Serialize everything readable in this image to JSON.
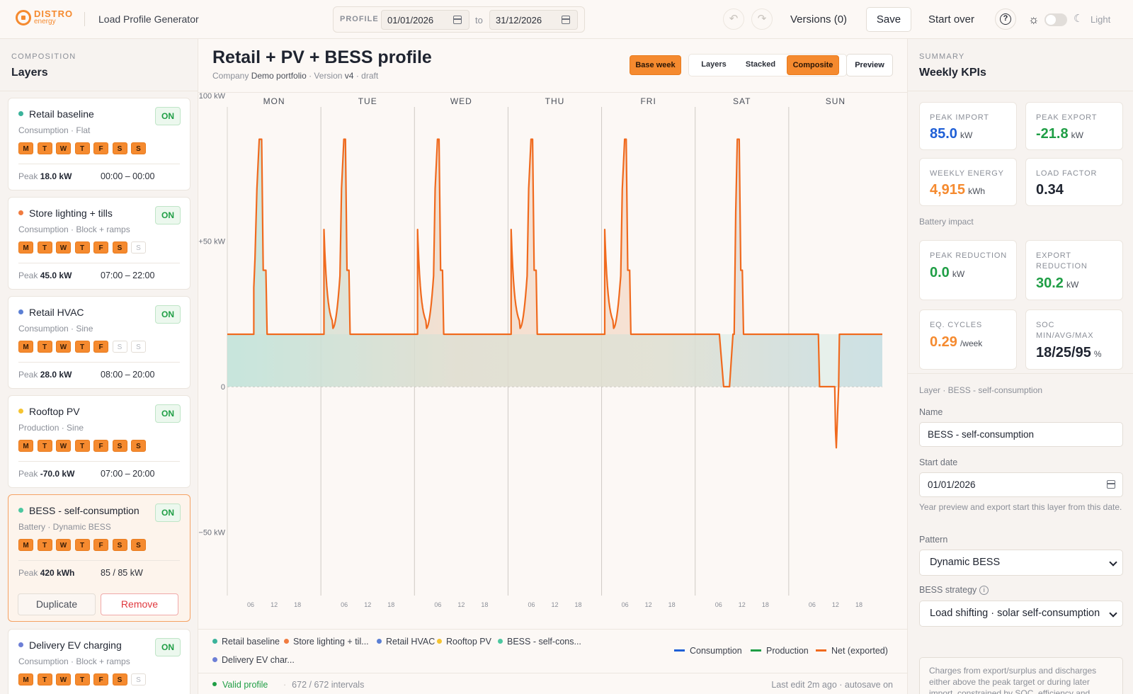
{
  "header": {
    "logo_top": "DISTRO",
    "logo_bottom": "energy",
    "app_title": "Load Profile Generator",
    "profile_label": "PROFILE",
    "date_from": "01/01/2026",
    "date_to_label": "to",
    "date_to": "31/12/2026",
    "versions": "Versions (0)",
    "save": "Save",
    "start_over": "Start over",
    "theme_label": "Light"
  },
  "left": {
    "caption": "COMPOSITION",
    "title": "Layers",
    "layers": [
      {
        "name": "Retail baseline",
        "sub": "Consumption · Flat",
        "color": "#3bb39b",
        "on": "ON",
        "days": [
          "M",
          "T",
          "W",
          "T",
          "F",
          "S",
          "S"
        ],
        "days_on": [
          true,
          true,
          true,
          true,
          true,
          true,
          true
        ],
        "peak_label": "Peak",
        "peak": "18.0 kW",
        "time": "00:00 – 00:00"
      },
      {
        "name": "Store lighting + tills",
        "sub": "Consumption · Block + ramps",
        "color": "#f07b3f",
        "on": "ON",
        "days": [
          "M",
          "T",
          "W",
          "T",
          "F",
          "S",
          "S"
        ],
        "days_on": [
          true,
          true,
          true,
          true,
          true,
          true,
          false
        ],
        "peak_label": "Peak",
        "peak": "45.0 kW",
        "time": "07:00 – 22:00"
      },
      {
        "name": "Retail HVAC",
        "sub": "Consumption · Sine",
        "color": "#5b7fd4",
        "on": "ON",
        "days": [
          "M",
          "T",
          "W",
          "T",
          "F",
          "S",
          "S"
        ],
        "days_on": [
          true,
          true,
          true,
          true,
          true,
          false,
          false
        ],
        "peak_label": "Peak",
        "peak": "28.0 kW",
        "time": "08:00 – 20:00"
      },
      {
        "name": "Rooftop PV",
        "sub": "Production · Sine",
        "color": "#f5c431",
        "on": "ON",
        "days": [
          "M",
          "T",
          "W",
          "T",
          "F",
          "S",
          "S"
        ],
        "days_on": [
          true,
          true,
          true,
          true,
          true,
          true,
          true
        ],
        "peak_label": "Peak",
        "peak": "-70.0 kW",
        "time": "07:00 – 20:00"
      },
      {
        "name": "BESS - self-consumption",
        "sub": "Battery · Dynamic BESS",
        "color": "#4cc7a0",
        "on": "ON",
        "days": [
          "M",
          "T",
          "W",
          "T",
          "F",
          "S",
          "S"
        ],
        "days_on": [
          true,
          true,
          true,
          true,
          true,
          true,
          true
        ],
        "peak_label": "Peak",
        "peak": "420 kWh",
        "time": "85 / 85 kW",
        "duplicate": "Duplicate",
        "remove": "Remove"
      },
      {
        "name": "Delivery EV charging",
        "sub": "Consumption · Block + ramps",
        "color": "#6d7fd6",
        "on": "ON",
        "days": [
          "M",
          "T",
          "W",
          "T",
          "F",
          "S",
          "S"
        ],
        "days_on": [
          true,
          true,
          true,
          true,
          true,
          true,
          false
        ],
        "peak_label": "Peak",
        "peak": "",
        "time": ""
      }
    ]
  },
  "center": {
    "title": "Retail + PV + BESS profile",
    "company_label": "Company",
    "company": "Demo portfolio",
    "version_label": "· Version",
    "version": "v4",
    "status": "· draft",
    "view_base_week": "Base week",
    "view_layers": "Layers",
    "view_stacked": "Stacked",
    "view_composite": "Composite",
    "preview": "Preview",
    "legend_layers": [
      "Retail baseline",
      "Store lighting + til...",
      "Retail HVAC",
      "Rooftop PV",
      "BESS - self-cons...",
      "Delivery EV char..."
    ],
    "legend_lines": [
      "Consumption",
      "Production",
      "Net (exported)"
    ],
    "valid": "Valid profile",
    "intervals": "672 / 672 intervals",
    "last_edit": "Last edit 2m ago · autosave on"
  },
  "chart_data": {
    "type": "line",
    "days": [
      "MON",
      "TUE",
      "WED",
      "THU",
      "FRI",
      "SAT",
      "SUN"
    ],
    "hour_ticks": [
      "06",
      "12",
      "18"
    ],
    "y_ticks": [
      "+100 kW",
      "+50 kW",
      "0",
      "−50 kW"
    ],
    "ylim": [
      -82,
      100
    ],
    "series_colors": {
      "net": "#f06a1e",
      "baseline": "#3bb39b",
      "lighting": "#f07b3f",
      "hvac": "#5b7fd4"
    },
    "net_week": {
      "mon": [
        [
          0,
          18
        ],
        [
          4.1,
          18
        ],
        [
          4.1,
          34
        ],
        [
          4.4,
          44
        ],
        [
          4.6,
          68
        ],
        [
          5.1,
          85
        ],
        [
          5.3,
          85
        ],
        [
          5.5,
          40
        ],
        [
          5.7,
          40
        ],
        [
          5.8,
          18
        ],
        [
          10.1,
          18
        ],
        [
          10.1,
          54
        ],
        [
          10.8,
          20
        ],
        [
          12.0,
          24
        ],
        [
          12.8,
          44
        ],
        [
          13.2,
          85
        ],
        [
          13.4,
          85
        ],
        [
          13.6,
          40
        ],
        [
          13.9,
          40
        ],
        [
          14.0,
          18
        ],
        [
          18.1,
          18
        ],
        [
          18.1,
          54
        ],
        [
          18.8,
          20
        ],
        [
          20.0,
          24
        ],
        [
          20.8,
          44
        ],
        [
          21.2,
          85
        ],
        [
          21.4,
          85
        ],
        [
          21.6,
          40
        ],
        [
          21.9,
          40
        ],
        [
          22.0,
          18
        ],
        [
          25.6,
          18
        ],
        [
          25.6,
          54
        ],
        [
          26.2,
          20
        ],
        [
          27.4,
          24
        ],
        [
          28.2,
          44
        ],
        [
          28.6,
          85
        ],
        [
          28.9,
          85
        ],
        [
          29.1,
          40
        ],
        [
          29.3,
          40
        ],
        [
          29.5,
          18
        ],
        [
          33.1,
          18
        ],
        [
          33.1,
          54
        ],
        [
          33.7,
          20
        ],
        [
          34.9,
          24
        ],
        [
          35.7,
          44
        ],
        [
          36.1,
          85
        ],
        [
          36.4,
          85
        ],
        [
          36.6,
          40
        ],
        [
          36.8,
          40
        ],
        [
          37.0,
          18
        ],
        [
          42.0,
          18
        ],
        [
          42.0,
          18
        ],
        [
          42.8,
          18
        ],
        [
          43.5,
          0
        ],
        [
          44.5,
          0
        ],
        [
          45.2,
          18
        ],
        [
          45.5,
          18
        ],
        [
          45.8,
          60
        ],
        [
          46.0,
          85
        ],
        [
          46.3,
          85
        ],
        [
          46.6,
          40
        ],
        [
          46.8,
          40
        ],
        [
          47.0,
          18
        ],
        [
          52.4,
          18
        ],
        [
          52.6,
          0
        ],
        [
          55.6,
          0
        ],
        [
          55.8,
          -15
        ],
        [
          56.0,
          -21
        ],
        [
          56.2,
          -10
        ],
        [
          56.5,
          0
        ],
        [
          56.7,
          18
        ],
        [
          58.0,
          18
        ]
      ]
    },
    "x_units": "hours of week (0–168), plotted day 1 start at 0"
  },
  "right": {
    "caption": "SUMMARY",
    "title": "Weekly KPIs",
    "kpis": [
      {
        "label": "PEAK IMPORT",
        "value": "85.0",
        "unit": "kW",
        "color": "#1f5fd6"
      },
      {
        "label": "PEAK EXPORT",
        "value": "-21.8",
        "unit": "kW",
        "color": "#1f9e45"
      },
      {
        "label": "WEEKLY ENERGY",
        "value": "4,915",
        "unit": "kWh",
        "color": "#f58a2f"
      },
      {
        "label": "LOAD FACTOR",
        "value": "0.34",
        "unit": "",
        "color": "#1f2430"
      }
    ],
    "battery_caption": "Battery impact",
    "battery_kpis": [
      {
        "label": "PEAK REDUCTION",
        "value": "0.0",
        "unit": "kW",
        "color": "#1f9e45"
      },
      {
        "label": "EXPORT REDUCTION",
        "value": "30.2",
        "unit": "kW",
        "color": "#1f9e45"
      },
      {
        "label": "EQ. CYCLES",
        "value": "0.29",
        "unit": "/week",
        "color": "#f58a2f"
      },
      {
        "label": "SOC MIN/AVG/MAX",
        "value": "18/25/95",
        "unit": "%",
        "color": "#1f2430"
      }
    ],
    "layer_caption": "Layer · BESS - self-consumption",
    "name_label": "Name",
    "name_value": "BESS - self-consumption",
    "start_label": "Start date",
    "start_value": "01/01/2026",
    "start_help": "Year preview and export start this layer from this date.",
    "pattern_label": "Pattern",
    "pattern_value": "Dynamic BESS",
    "strategy_label": "BESS strategy",
    "strategy_value": "Load shifting · solar self-consumption",
    "note": "Charges from export/surplus and discharges either above the peak target or during later import, constrained by SOC, efficiency and"
  }
}
